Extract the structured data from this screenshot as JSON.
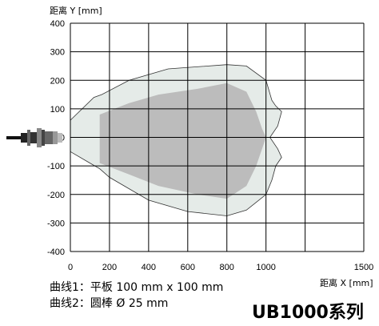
{
  "chart_data": {
    "type": "area",
    "ylabel": "距离 Y [mm]",
    "xlabel": "距离 X [mm]",
    "xlim": [
      0,
      1500
    ],
    "ylim": [
      -400,
      400
    ],
    "x_ticks": [
      0,
      200,
      400,
      600,
      800,
      1000,
      1500
    ],
    "y_ticks": [
      400,
      300,
      200,
      100,
      0,
      -100,
      -200,
      -300,
      -400
    ],
    "grid": true,
    "colors": {
      "curve1": "#e5ebe8",
      "curve2": "#bcbcbc",
      "grid": "#000000"
    },
    "series": [
      {
        "name": "曲线1：平板 100 mm x 100 mm",
        "outline": [
          [
            0,
            60
          ],
          [
            120,
            140
          ],
          [
            160,
            150
          ],
          [
            300,
            200
          ],
          [
            500,
            240
          ],
          [
            800,
            255
          ],
          [
            900,
            250
          ],
          [
            1000,
            200
          ],
          [
            1030,
            130
          ],
          [
            1050,
            110
          ],
          [
            1080,
            90
          ],
          [
            1060,
            40
          ],
          [
            1020,
            0
          ],
          [
            1060,
            -40
          ],
          [
            1080,
            -70
          ],
          [
            1050,
            -100
          ],
          [
            1030,
            -150
          ],
          [
            1000,
            -200
          ],
          [
            900,
            -255
          ],
          [
            800,
            -275
          ],
          [
            600,
            -260
          ],
          [
            400,
            -220
          ],
          [
            200,
            -140
          ],
          [
            150,
            -110
          ],
          [
            100,
            -90
          ],
          [
            0,
            -50
          ]
        ]
      },
      {
        "name": "曲线2：圆棒 Ø 25 mm",
        "outline": [
          [
            150,
            80
          ],
          [
            300,
            120
          ],
          [
            450,
            150
          ],
          [
            650,
            170
          ],
          [
            800,
            190
          ],
          [
            900,
            160
          ],
          [
            950,
            90
          ],
          [
            980,
            30
          ],
          [
            1000,
            0
          ],
          [
            980,
            -40
          ],
          [
            950,
            -100
          ],
          [
            900,
            -170
          ],
          [
            800,
            -215
          ],
          [
            650,
            -200
          ],
          [
            450,
            -170
          ],
          [
            300,
            -130
          ],
          [
            150,
            -90
          ]
        ]
      }
    ],
    "legend": [
      "曲线1：平板 100 mm x 100 mm",
      "曲线2：圆棒 Ø 25 mm"
    ],
    "product": "UB1000系列"
  }
}
